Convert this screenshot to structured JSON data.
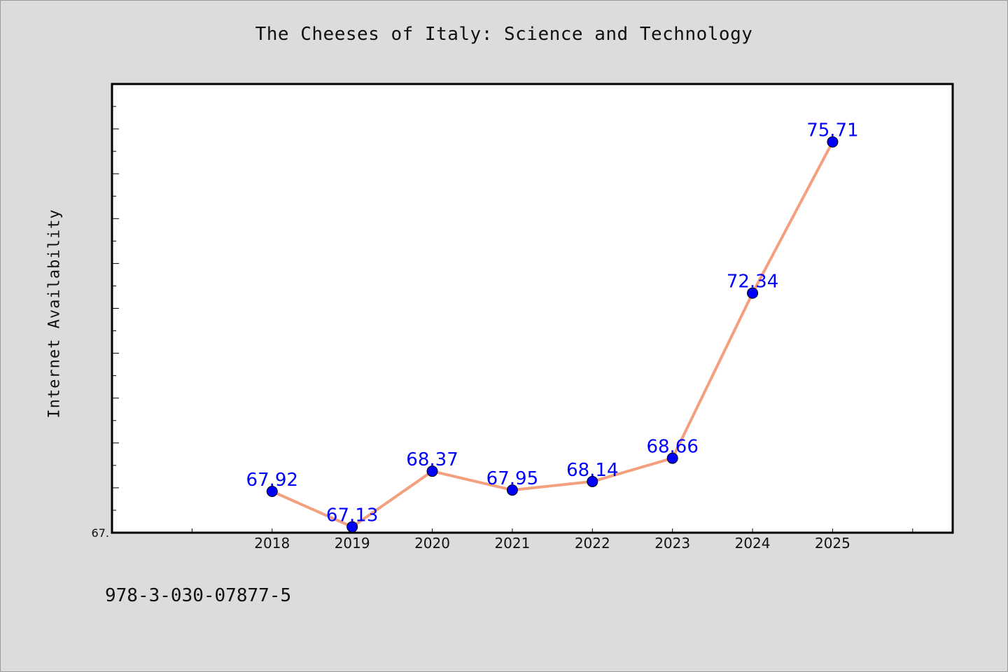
{
  "page": {
    "isbn_text": "978-3-030-07877-5"
  },
  "chart_data": {
    "type": "line",
    "title": "The Cheeses of Italy: Science and Technology",
    "xlabel": "",
    "ylabel": "Internet Availability",
    "x": [
      2018,
      2019,
      2020,
      2021,
      2022,
      2023,
      2024,
      2025
    ],
    "x_tick_labels": [
      "2018",
      "2019",
      "2020",
      "2021",
      "2022",
      "2023",
      "2024",
      "2025"
    ],
    "series": [
      {
        "values": [
          67.92,
          67.13,
          68.37,
          67.95,
          68.14,
          68.66,
          72.34,
          75.71
        ],
        "data_labels": [
          "67.92",
          "67.13",
          "68.37",
          "67.95",
          "68.14",
          "68.66",
          "72.34",
          "75.71"
        ]
      }
    ],
    "xlim": [
      2016,
      2026.5
    ],
    "ylim": [
      67.0,
      77.0
    ],
    "y_tick_labels": [
      "67."
    ],
    "grid": false,
    "legend": "none",
    "colors": {
      "line": "#f4a07e",
      "marker": "#0000ff",
      "data_label": "#0000ff",
      "plot_background": "#ffffff",
      "figure_background": "#dcdcdc"
    }
  }
}
